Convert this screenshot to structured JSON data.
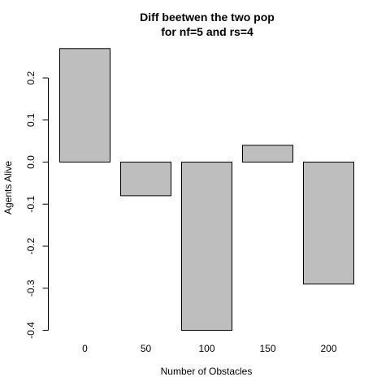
{
  "chart_data": {
    "type": "bar",
    "title_lines": [
      "Diff beetwen the two pop",
      "for nf=5 and rs=4"
    ],
    "xlabel": "Number of Obstacles",
    "ylabel": "Agents Alive",
    "categories": [
      "0",
      "50",
      "100",
      "150",
      "200"
    ],
    "values": [
      0.27,
      -0.08,
      -0.4,
      0.04,
      -0.29
    ],
    "ylim": [
      -0.4,
      0.27
    ],
    "yticks": [
      -0.4,
      -0.3,
      -0.2,
      -0.1,
      0.0,
      0.1,
      0.2
    ],
    "ytick_labels": [
      "-0.4",
      "-0.3",
      "-0.2",
      "-0.1",
      "0.0",
      "0.1",
      "0.2"
    ],
    "grid": false,
    "bar_fill": "#bebebe",
    "bar_stroke": "#000000",
    "baseline_at_zero": true
  }
}
